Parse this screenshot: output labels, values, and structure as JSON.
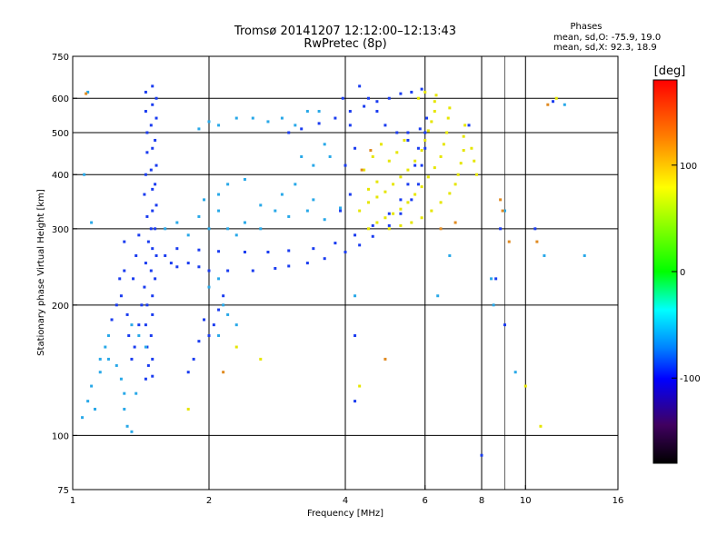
{
  "chart_data": {
    "type": "scatter",
    "title": "Tromsø 20141207 12:12:00–12:13:43",
    "subtitle": "RwPretec (8p)",
    "xlabel": "Frequency [MHz]",
    "ylabel": "Stationary phase Virtual Height [km]",
    "x_scale": "log",
    "y_scale": "log",
    "xlim": [
      1,
      16
    ],
    "ylim": [
      75,
      750
    ],
    "x_ticks": [
      1,
      2,
      4,
      6,
      8,
      10,
      16
    ],
    "x_tick_labels": [
      "1",
      "2",
      "4",
      "6",
      "8",
      "10",
      "16"
    ],
    "y_ticks": [
      75,
      100,
      200,
      300,
      400,
      500,
      600,
      750
    ],
    "y_tick_labels": [
      "75",
      "100",
      "200",
      "300",
      "400",
      "500",
      "600",
      "750"
    ],
    "grid": true,
    "stats": {
      "heading": "Phases",
      "o_line": "mean, sd,O: -75.9, 19.0",
      "x_line": "mean, sd,X:  92.3, 18.9"
    },
    "colorbar": {
      "label": "[deg]",
      "range": [
        -180,
        180
      ],
      "ticks": [
        100,
        0,
        -100
      ],
      "tick_labels": [
        "100",
        "0",
        "-100"
      ],
      "colors": [
        "#ff0000",
        "#ff8000",
        "#ffff00",
        "#00ff00",
        "#00ffff",
        "#0080ff",
        "#0000ff",
        "#400060",
        "#000000"
      ]
    },
    "series": [
      {
        "phase_mean": -100,
        "color": "#1a3cf0",
        "points": [
          [
            1.45,
            620
          ],
          [
            1.45,
            560
          ],
          [
            1.46,
            500
          ],
          [
            1.46,
            450
          ],
          [
            1.45,
            400
          ],
          [
            1.44,
            360
          ],
          [
            1.46,
            320
          ],
          [
            1.47,
            280
          ],
          [
            1.45,
            250
          ],
          [
            1.44,
            220
          ],
          [
            1.46,
            200
          ],
          [
            1.45,
            180
          ],
          [
            1.46,
            160
          ],
          [
            1.47,
            145
          ],
          [
            1.45,
            135
          ],
          [
            1.5,
            640
          ],
          [
            1.5,
            580
          ],
          [
            1.49,
            520
          ],
          [
            1.5,
            460
          ],
          [
            1.49,
            410
          ],
          [
            1.5,
            370
          ],
          [
            1.5,
            330
          ],
          [
            1.49,
            300
          ],
          [
            1.5,
            270
          ],
          [
            1.49,
            240
          ],
          [
            1.5,
            210
          ],
          [
            1.5,
            190
          ],
          [
            1.49,
            170
          ],
          [
            1.5,
            150
          ],
          [
            1.5,
            137
          ],
          [
            1.53,
            600
          ],
          [
            1.53,
            540
          ],
          [
            1.52,
            480
          ],
          [
            1.53,
            420
          ],
          [
            1.52,
            380
          ],
          [
            1.53,
            340
          ],
          [
            1.52,
            300
          ],
          [
            1.53,
            260
          ],
          [
            1.52,
            230
          ],
          [
            1.3,
            280
          ],
          [
            1.3,
            240
          ],
          [
            1.28,
            210
          ],
          [
            1.32,
            190
          ],
          [
            1.33,
            170
          ],
          [
            1.35,
            150
          ],
          [
            1.36,
            230
          ],
          [
            1.38,
            260
          ],
          [
            1.4,
            290
          ],
          [
            1.42,
            200
          ],
          [
            1.4,
            180
          ],
          [
            1.37,
            160
          ],
          [
            1.25,
            200
          ],
          [
            1.27,
            230
          ],
          [
            1.22,
            185
          ],
          [
            1.6,
            260
          ],
          [
            1.65,
            250
          ],
          [
            1.7,
            245
          ],
          [
            1.8,
            250
          ],
          [
            1.9,
            245
          ],
          [
            2.0,
            240
          ],
          [
            2.2,
            240
          ],
          [
            2.5,
            240
          ],
          [
            2.8,
            243
          ],
          [
            3.0,
            246
          ],
          [
            3.3,
            250
          ],
          [
            3.6,
            256
          ],
          [
            4.0,
            265
          ],
          [
            4.3,
            275
          ],
          [
            4.6,
            288
          ],
          [
            5.0,
            305
          ],
          [
            5.3,
            325
          ],
          [
            5.6,
            350
          ],
          [
            5.8,
            380
          ],
          [
            5.9,
            420
          ],
          [
            6.0,
            460
          ],
          [
            6.0,
            500
          ],
          [
            6.05,
            540
          ],
          [
            1.7,
            270
          ],
          [
            1.9,
            268
          ],
          [
            2.1,
            266
          ],
          [
            2.4,
            265
          ],
          [
            2.7,
            265
          ],
          [
            3.0,
            267
          ],
          [
            3.4,
            270
          ],
          [
            3.8,
            278
          ],
          [
            4.2,
            290
          ],
          [
            4.6,
            305
          ],
          [
            5.0,
            325
          ],
          [
            5.3,
            350
          ],
          [
            5.5,
            380
          ],
          [
            5.7,
            420
          ],
          [
            5.8,
            460
          ],
          [
            5.85,
            510
          ],
          [
            3.0,
            500
          ],
          [
            3.2,
            510
          ],
          [
            3.5,
            525
          ],
          [
            3.8,
            540
          ],
          [
            4.1,
            560
          ],
          [
            4.4,
            575
          ],
          [
            4.7,
            590
          ],
          [
            5.0,
            600
          ],
          [
            5.3,
            615
          ],
          [
            5.6,
            620
          ],
          [
            5.9,
            630
          ],
          [
            3.9,
            330
          ],
          [
            4.1,
            360
          ],
          [
            4.0,
            420
          ],
          [
            4.2,
            460
          ],
          [
            4.1,
            520
          ],
          [
            3.95,
            600
          ],
          [
            4.3,
            640
          ],
          [
            4.5,
            600
          ],
          [
            4.7,
            560
          ],
          [
            4.9,
            520
          ],
          [
            5.2,
            500
          ],
          [
            5.5,
            480
          ],
          [
            2.0,
            170
          ],
          [
            2.05,
            180
          ],
          [
            2.1,
            195
          ],
          [
            2.15,
            210
          ],
          [
            1.9,
            165
          ],
          [
            1.85,
            150
          ],
          [
            1.8,
            140
          ],
          [
            1.95,
            185
          ],
          [
            8.0,
            90
          ],
          [
            4.2,
            120
          ],
          [
            4.2,
            170
          ],
          [
            5.5,
            500
          ],
          [
            7.5,
            520
          ],
          [
            8.8,
            300
          ],
          [
            10.5,
            300
          ],
          [
            11.5,
            590
          ],
          [
            9.0,
            180
          ],
          [
            8.6,
            230
          ]
        ]
      },
      {
        "phase_mean": -60,
        "color": "#28a8e8",
        "points": [
          [
            1.05,
            110
          ],
          [
            1.08,
            120
          ],
          [
            1.1,
            130
          ],
          [
            1.12,
            115
          ],
          [
            1.15,
            140
          ],
          [
            1.18,
            160
          ],
          [
            1.2,
            150
          ],
          [
            1.25,
            145
          ],
          [
            1.28,
            135
          ],
          [
            1.3,
            125
          ],
          [
            1.32,
            105
          ],
          [
            1.35,
            102
          ],
          [
            1.6,
            300
          ],
          [
            1.7,
            310
          ],
          [
            1.8,
            290
          ],
          [
            1.9,
            320
          ],
          [
            2.0,
            300
          ],
          [
            2.1,
            330
          ],
          [
            2.2,
            300
          ],
          [
            2.3,
            290
          ],
          [
            2.4,
            310
          ],
          [
            2.6,
            300
          ],
          [
            2.8,
            330
          ],
          [
            3.0,
            320
          ],
          [
            3.3,
            330
          ],
          [
            3.6,
            315
          ],
          [
            3.9,
            335
          ],
          [
            1.9,
            510
          ],
          [
            2.0,
            530
          ],
          [
            2.1,
            520
          ],
          [
            2.3,
            540
          ],
          [
            2.5,
            540
          ],
          [
            2.7,
            530
          ],
          [
            2.9,
            540
          ],
          [
            3.1,
            520
          ],
          [
            3.3,
            560
          ],
          [
            3.5,
            560
          ],
          [
            3.7,
            440
          ],
          [
            3.4,
            420
          ],
          [
            3.2,
            440
          ],
          [
            3.6,
            470
          ],
          [
            1.95,
            350
          ],
          [
            2.1,
            360
          ],
          [
            2.2,
            380
          ],
          [
            2.4,
            390
          ],
          [
            2.6,
            340
          ],
          [
            2.9,
            360
          ],
          [
            3.1,
            380
          ],
          [
            3.4,
            350
          ],
          [
            2.0,
            220
          ],
          [
            2.1,
            230
          ],
          [
            2.15,
            200
          ],
          [
            2.2,
            190
          ],
          [
            2.3,
            180
          ],
          [
            2.1,
            170
          ],
          [
            1.35,
            180
          ],
          [
            1.4,
            170
          ],
          [
            1.45,
            160
          ],
          [
            1.2,
            170
          ],
          [
            1.15,
            150
          ],
          [
            1.38,
            125
          ],
          [
            1.3,
            115
          ],
          [
            4.2,
            210
          ],
          [
            6.4,
            210
          ],
          [
            6.8,
            260
          ],
          [
            8.5,
            200
          ],
          [
            8.4,
            230
          ],
          [
            9.0,
            330
          ],
          [
            11.0,
            260
          ],
          [
            12.2,
            580
          ],
          [
            13.5,
            260
          ],
          [
            9.5,
            140
          ],
          [
            1.08,
            620
          ],
          [
            1.06,
            400
          ],
          [
            1.1,
            310
          ]
        ]
      },
      {
        "phase_mean": 95,
        "color": "#e6e600",
        "points": [
          [
            4.3,
            330
          ],
          [
            4.5,
            345
          ],
          [
            4.7,
            355
          ],
          [
            4.9,
            365
          ],
          [
            5.1,
            380
          ],
          [
            5.3,
            395
          ],
          [
            5.5,
            410
          ],
          [
            5.7,
            430
          ],
          [
            5.9,
            455
          ],
          [
            6.0,
            480
          ],
          [
            6.1,
            505
          ],
          [
            6.2,
            530
          ],
          [
            6.3,
            560
          ],
          [
            6.3,
            590
          ],
          [
            6.35,
            610
          ],
          [
            4.5,
            300
          ],
          [
            4.7,
            310
          ],
          [
            4.9,
            318
          ],
          [
            5.1,
            325
          ],
          [
            5.3,
            333
          ],
          [
            5.5,
            345
          ],
          [
            5.7,
            360
          ],
          [
            5.9,
            375
          ],
          [
            6.1,
            395
          ],
          [
            6.3,
            415
          ],
          [
            6.5,
            440
          ],
          [
            6.6,
            470
          ],
          [
            6.7,
            500
          ],
          [
            6.75,
            540
          ],
          [
            6.8,
            570
          ],
          [
            5.0,
            300
          ],
          [
            5.3,
            305
          ],
          [
            5.6,
            310
          ],
          [
            5.9,
            318
          ],
          [
            6.2,
            330
          ],
          [
            6.5,
            345
          ],
          [
            6.8,
            362
          ],
          [
            7.0,
            380
          ],
          [
            7.1,
            400
          ],
          [
            7.2,
            425
          ],
          [
            7.3,
            455
          ],
          [
            7.3,
            490
          ],
          [
            7.35,
            520
          ],
          [
            4.4,
            410
          ],
          [
            4.6,
            440
          ],
          [
            4.8,
            470
          ],
          [
            5.0,
            430
          ],
          [
            5.2,
            450
          ],
          [
            5.4,
            480
          ],
          [
            4.5,
            370
          ],
          [
            4.7,
            385
          ],
          [
            6.0,
            620
          ],
          [
            5.8,
            600
          ],
          [
            7.6,
            460
          ],
          [
            7.7,
            430
          ],
          [
            7.8,
            400
          ],
          [
            2.3,
            160
          ],
          [
            2.6,
            150
          ],
          [
            1.8,
            115
          ],
          [
            10.0,
            130
          ],
          [
            10.8,
            105
          ],
          [
            4.3,
            130
          ],
          [
            11.7,
            600
          ]
        ]
      },
      {
        "phase_mean": 120,
        "color": "#e08a20",
        "points": [
          [
            1.07,
            615
          ],
          [
            2.15,
            140
          ],
          [
            4.9,
            150
          ],
          [
            8.8,
            350
          ],
          [
            8.9,
            330
          ],
          [
            9.2,
            280
          ],
          [
            10.6,
            280
          ],
          [
            11.2,
            580
          ],
          [
            4.35,
            410
          ],
          [
            4.55,
            455
          ],
          [
            6.5,
            300
          ],
          [
            7.0,
            310
          ]
        ]
      }
    ]
  }
}
